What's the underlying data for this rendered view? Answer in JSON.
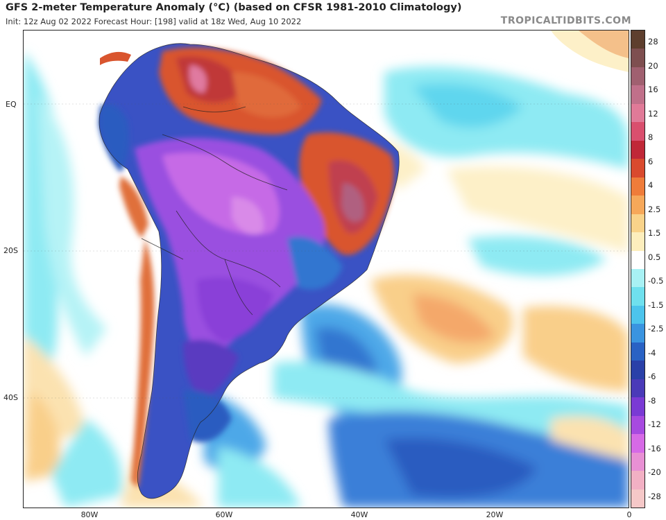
{
  "header": {
    "title": "GFS 2-meter Temperature Anomaly (°C) (based on CFSR 1981-2010 Climatology)",
    "subtitle": "Init: 12z Aug 02 2022   Forecast Hour: [198]   valid at 18z Wed, Aug 10 2022",
    "brand": "TROPICALTIDBITS.COM"
  },
  "axes": {
    "lat_labels": [
      {
        "text": "EQ",
        "lat": 0
      },
      {
        "text": "20S",
        "lat": -20
      },
      {
        "text": "40S",
        "lat": -40
      }
    ],
    "lon_labels": [
      {
        "text": "80W",
        "lon": -80
      },
      {
        "text": "60W",
        "lon": -60
      },
      {
        "text": "40W",
        "lon": -40
      },
      {
        "text": "20W",
        "lon": -20
      },
      {
        "text": "0",
        "lon": 0
      }
    ],
    "extent": {
      "lon_min": -89,
      "lon_max": 0,
      "lat_min": -54,
      "lat_max": 10
    }
  },
  "colorbar": {
    "labels": [
      "28",
      "20",
      "16",
      "12",
      "8",
      "6",
      "4",
      "2.5",
      "1.5",
      "0.5",
      "-0.5",
      "-1.5",
      "-2.5",
      "-4",
      "-6",
      "-8",
      "-12",
      "-16",
      "-20",
      "-28"
    ],
    "colors": [
      "#5e3f2e",
      "#7e4f50",
      "#a06070",
      "#c0708a",
      "#e07a98",
      "#d94f6e",
      "#c02838",
      "#d94a2e",
      "#ef7c3a",
      "#f6a85a",
      "#f9d38a",
      "#fdeebd",
      "#ffffff",
      "#a8f1f4",
      "#6fe0ee",
      "#4cc4ec",
      "#3a94e0",
      "#2a62c4",
      "#2a40a8",
      "#4a3ab8",
      "#7a3ad4",
      "#a74ae0",
      "#d66ae6",
      "#e890d4",
      "#f2b0c4",
      "#f5c8c8"
    ]
  },
  "map": {
    "description_colors": {
      "warm": "#d9552e",
      "cold": "#9b4fe0",
      "ocean_cool": "#7fe3f0",
      "ocean_blue": "#3b7fd8"
    }
  }
}
